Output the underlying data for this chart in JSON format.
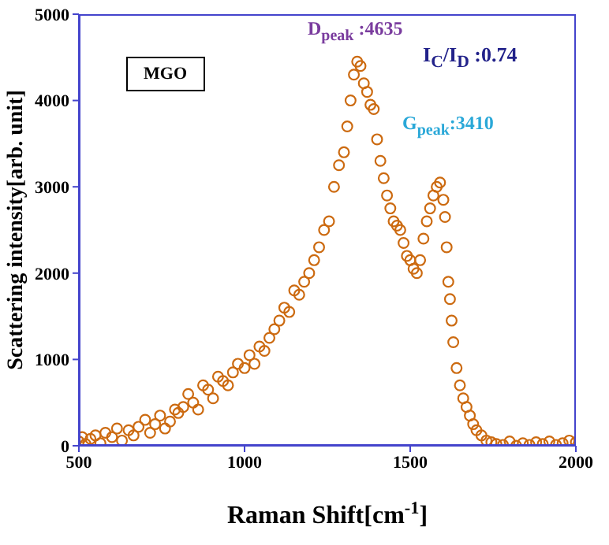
{
  "chart_data": {
    "type": "scatter",
    "xlabel": "Raman Shift[cm$^{-1}$]",
    "ylabel": "Scattering intensity[arb. unit]",
    "x": [
      500,
      510,
      520,
      535,
      550,
      565,
      580,
      600,
      615,
      630,
      650,
      665,
      680,
      700,
      715,
      730,
      745,
      760,
      775,
      790,
      800,
      815,
      830,
      845,
      860,
      875,
      890,
      905,
      920,
      935,
      950,
      965,
      980,
      1000,
      1015,
      1030,
      1045,
      1060,
      1075,
      1090,
      1105,
      1120,
      1135,
      1150,
      1165,
      1180,
      1195,
      1210,
      1225,
      1240,
      1255,
      1270,
      1285,
      1300,
      1310,
      1320,
      1330,
      1340,
      1350,
      1360,
      1370,
      1380,
      1390,
      1400,
      1410,
      1420,
      1430,
      1440,
      1450,
      1460,
      1470,
      1480,
      1490,
      1500,
      1510,
      1520,
      1530,
      1540,
      1550,
      1560,
      1570,
      1580,
      1590,
      1600,
      1605,
      1610,
      1615,
      1620,
      1625,
      1630,
      1640,
      1650,
      1660,
      1670,
      1680,
      1690,
      1700,
      1715,
      1730,
      1745,
      1760,
      1780,
      1800,
      1820,
      1840,
      1860,
      1880,
      1900,
      1920,
      1940,
      1960,
      1980,
      2000
    ],
    "series": [
      {
        "color": "#cc6a10",
        "values": [
          50,
          100,
          20,
          80,
          120,
          30,
          150,
          100,
          200,
          60,
          180,
          120,
          220,
          300,
          150,
          250,
          350,
          200,
          280,
          420,
          380,
          450,
          600,
          500,
          420,
          700,
          650,
          550,
          800,
          750,
          700,
          850,
          950,
          900,
          1050,
          950,
          1150,
          1100,
          1250,
          1350,
          1450,
          1600,
          1550,
          1800,
          1750,
          1900,
          2000,
          2150,
          2300,
          2500,
          2600,
          3000,
          3250,
          3400,
          3700,
          4000,
          4300,
          4450,
          4400,
          4200,
          4100,
          3950,
          3900,
          3550,
          3300,
          3100,
          2900,
          2750,
          2600,
          2550,
          2500,
          2350,
          2200,
          2150,
          2050,
          2000,
          2150,
          2400,
          2600,
          2750,
          2900,
          3000,
          3050,
          2850,
          2650,
          2300,
          1900,
          1700,
          1450,
          1200,
          900,
          700,
          550,
          450,
          350,
          250,
          180,
          120,
          60,
          40,
          20,
          10,
          50,
          0,
          30,
          10,
          40,
          20,
          50,
          10,
          30,
          60,
          40
        ]
      }
    ],
    "xlim": [
      500,
      2000
    ],
    "ylim": [
      0,
      5000
    ],
    "xticks": [
      500,
      1000,
      1500,
      2000
    ],
    "yticks": [
      0,
      1000,
      2000,
      3000,
      4000,
      5000
    ],
    "marker": "circle",
    "grid": false,
    "legend": false,
    "annotations": [
      "MGO",
      "I$_{C}$/I$_{D}$ :0.74",
      "D$_{peak}$ :4635",
      "G$_{peak}$:3410"
    ]
  }
}
